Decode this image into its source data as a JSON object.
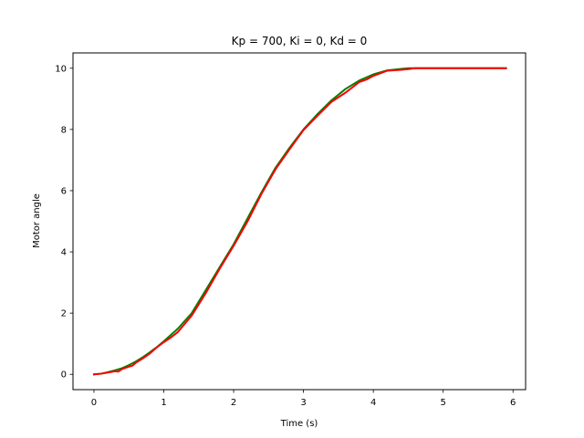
{
  "chart_data": {
    "type": "line",
    "title": "Kp = 700, Ki = 0, Kd = 0",
    "xlabel": "Time (s)",
    "ylabel": "Motor angle",
    "xlim": [
      -0.3,
      6.18
    ],
    "ylim": [
      -0.5,
      10.5
    ],
    "xticks": [
      0,
      1,
      2,
      3,
      4,
      5,
      6
    ],
    "yticks": [
      0,
      2,
      4,
      6,
      8,
      10
    ],
    "grid": false,
    "legend": "none",
    "series": [
      {
        "color": "#008000",
        "x": [
          0,
          0.1,
          0.2,
          0.3,
          0.4,
          0.5,
          0.6,
          0.7,
          0.8,
          0.9,
          1.0,
          1.2,
          1.4,
          1.6,
          1.8,
          2.0,
          2.2,
          2.4,
          2.6,
          2.8,
          3.0,
          3.2,
          3.4,
          3.6,
          3.8,
          4.0,
          4.2,
          4.4,
          4.5,
          4.6,
          5.0,
          5.5,
          5.9
        ],
        "y": [
          0,
          0.02,
          0.07,
          0.13,
          0.2,
          0.3,
          0.42,
          0.56,
          0.72,
          0.89,
          1.08,
          1.49,
          2.0,
          2.75,
          3.5,
          4.25,
          5.1,
          5.95,
          6.75,
          7.4,
          8.0,
          8.5,
          8.95,
          9.32,
          9.6,
          9.8,
          9.93,
          9.98,
          10.0,
          10.0,
          10.0,
          10.0,
          10.0
        ]
      },
      {
        "color": "#ff0000",
        "x": [
          0,
          0.1,
          0.2,
          0.3,
          0.35,
          0.4,
          0.5,
          0.55,
          0.6,
          0.7,
          0.8,
          0.9,
          1.0,
          1.1,
          1.2,
          1.3,
          1.4,
          1.6,
          1.8,
          2.0,
          2.2,
          2.4,
          2.6,
          2.8,
          3.0,
          3.2,
          3.4,
          3.5,
          3.6,
          3.8,
          3.9,
          4.0,
          4.2,
          4.4,
          4.5,
          4.6,
          5.0,
          5.5,
          5.9
        ],
        "y": [
          0,
          0.02,
          0.06,
          0.1,
          0.09,
          0.17,
          0.25,
          0.28,
          0.38,
          0.52,
          0.68,
          0.88,
          1.05,
          1.2,
          1.38,
          1.65,
          1.92,
          2.65,
          3.45,
          4.2,
          5.0,
          5.9,
          6.7,
          7.35,
          7.98,
          8.45,
          8.9,
          9.05,
          9.2,
          9.55,
          9.63,
          9.75,
          9.92,
          9.95,
          9.97,
          10.0,
          10.0,
          10.0,
          10.0
        ]
      }
    ]
  }
}
